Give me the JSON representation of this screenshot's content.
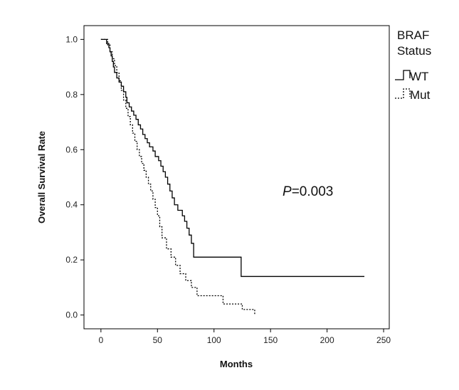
{
  "chart_data": {
    "type": "line",
    "subtype": "kaplan-meier step",
    "xlabel": "Months",
    "ylabel": "Overall Survival Rate",
    "xlim": [
      -15,
      255
    ],
    "ylim": [
      -0.05,
      1.05
    ],
    "xticks": [
      "0",
      "50",
      "100",
      "150",
      "200",
      "250"
    ],
    "yticks": [
      "0.0",
      "0.2",
      "0.4",
      "0.6",
      "0.8",
      "1.0"
    ],
    "grid": false,
    "legend": {
      "title_line1": "BRAF",
      "title_line2": "Status",
      "placement": "right, outside plot"
    },
    "annotation": {
      "p_label": "P",
      "p_value": "=0.003"
    },
    "series": [
      {
        "name": "WT",
        "style": "solid",
        "points": [
          [
            0,
            1.0
          ],
          [
            4,
            1.0
          ],
          [
            5,
            0.985
          ],
          [
            7,
            0.97
          ],
          [
            8,
            0.955
          ],
          [
            9,
            0.94
          ],
          [
            10,
            0.92
          ],
          [
            11,
            0.9
          ],
          [
            12,
            0.88
          ],
          [
            14,
            0.86
          ],
          [
            16,
            0.845
          ],
          [
            18,
            0.83
          ],
          [
            20,
            0.81
          ],
          [
            22,
            0.79
          ],
          [
            23,
            0.77
          ],
          [
            25,
            0.755
          ],
          [
            27,
            0.74
          ],
          [
            29,
            0.725
          ],
          [
            31,
            0.71
          ],
          [
            33,
            0.69
          ],
          [
            35,
            0.675
          ],
          [
            37,
            0.655
          ],
          [
            39,
            0.64
          ],
          [
            41,
            0.625
          ],
          [
            43,
            0.61
          ],
          [
            46,
            0.595
          ],
          [
            48,
            0.575
          ],
          [
            51,
            0.56
          ],
          [
            53,
            0.54
          ],
          [
            55,
            0.52
          ],
          [
            57,
            0.5
          ],
          [
            59,
            0.475
          ],
          [
            61,
            0.45
          ],
          [
            63,
            0.425
          ],
          [
            65,
            0.4
          ],
          [
            68,
            0.38
          ],
          [
            72,
            0.36
          ],
          [
            74,
            0.34
          ],
          [
            76,
            0.315
          ],
          [
            78,
            0.29
          ],
          [
            80,
            0.26
          ],
          [
            82,
            0.21
          ],
          [
            124,
            0.14
          ],
          [
            233,
            0.14
          ]
        ]
      },
      {
        "name": "Mut",
        "style": "dashed",
        "points": [
          [
            0,
            1.0
          ],
          [
            4,
            1.0
          ],
          [
            6,
            0.98
          ],
          [
            8,
            0.955
          ],
          [
            10,
            0.93
          ],
          [
            12,
            0.905
          ],
          [
            14,
            0.88
          ],
          [
            16,
            0.85
          ],
          [
            18,
            0.815
          ],
          [
            20,
            0.78
          ],
          [
            22,
            0.75
          ],
          [
            24,
            0.72
          ],
          [
            26,
            0.69
          ],
          [
            28,
            0.66
          ],
          [
            30,
            0.63
          ],
          [
            32,
            0.6
          ],
          [
            34,
            0.575
          ],
          [
            36,
            0.55
          ],
          [
            38,
            0.525
          ],
          [
            40,
            0.5
          ],
          [
            42,
            0.475
          ],
          [
            44,
            0.45
          ],
          [
            46,
            0.42
          ],
          [
            48,
            0.39
          ],
          [
            50,
            0.36
          ],
          [
            52,
            0.32
          ],
          [
            54,
            0.28
          ],
          [
            58,
            0.24
          ],
          [
            62,
            0.21
          ],
          [
            66,
            0.18
          ],
          [
            70,
            0.15
          ],
          [
            75,
            0.125
          ],
          [
            80,
            0.1
          ],
          [
            85,
            0.07
          ],
          [
            108,
            0.04
          ],
          [
            125,
            0.02
          ],
          [
            136,
            0.0
          ]
        ]
      }
    ]
  }
}
